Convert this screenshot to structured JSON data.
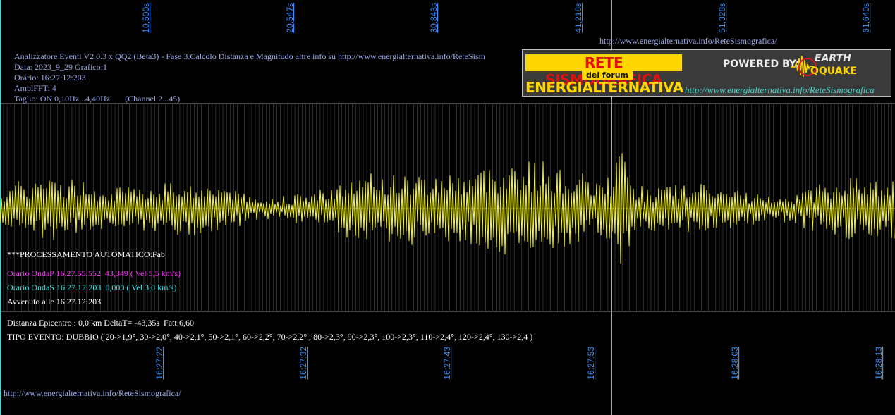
{
  "header": {
    "line1": "Analizzatore Eventi V2.0.3 x QQ2 (Beta3) - Fase 3.Calcolo Distanza e Magnitudo altre info su http://www.energialternativa.info/ReteSism",
    "line2": "Data: 2023_9_29 Grafico:1",
    "line3": "Orario: 16:27:12:203",
    "line4": "AmplFFT: 4",
    "line5": "Taglio: ON 0,10Hz...4,40Hz       (Channel 2...45)"
  },
  "top_url": "http://www.energialternativa.info/ReteSismografica/",
  "bottom_url": "http://www.energialternativa.info/ReteSismografica/",
  "banner": {
    "rete": "RETE SISMOGRAFICA",
    "forum": "del forum",
    "energ": "ENERGIALTERNATIVA",
    "powered": "POWERED BY:",
    "earth": "EARTH",
    "quake": "QQUAKE",
    "url": "http://www.energialternativa.info/ReteSismografica"
  },
  "processing": {
    "auto": "***PROCESSAMENTO AUTOMATICO:Fab",
    "ondaP": "Orario OndaP 16.27.55:552  43,349 ( Vel 5,5 km/s)",
    "ondaS": "Orario OndaS 16.27.12:203  0,000 ( Vel 3,0 km/s)",
    "avvenuto": "Avvenuto alle 16.27.12:203"
  },
  "event": {
    "distanza": "Distanza Epicentro : 0,0 km DeltaT= -43,35s  Fatt:6,60",
    "tipo": "TIPO EVENTO: DUBBIO ( 20->1,9°, 30->2,0°, 40->2,1°, 50->2,1°, 60->2,2°, 70->2,2° , 80->2,3°, 90->2,3°, 100->2,3°, 110->2,4°, 120->2,4°, 130->2,4 )"
  },
  "top_axis_labels": [
    "10,500s",
    "20,547s",
    "30,843s",
    "41,218s",
    "51,328s",
    "61,640s"
  ],
  "bottom_axis_labels": [
    "16:27:22",
    "16:27:32",
    "16:27:43",
    "16:27:53",
    "16:28:03",
    "16:28:13"
  ],
  "colors": {
    "background": "#000000",
    "trace": "#ffff00",
    "axis_label": "#3a8fff",
    "marker": "#ff66ff",
    "grid": "#5a5a5a"
  }
}
